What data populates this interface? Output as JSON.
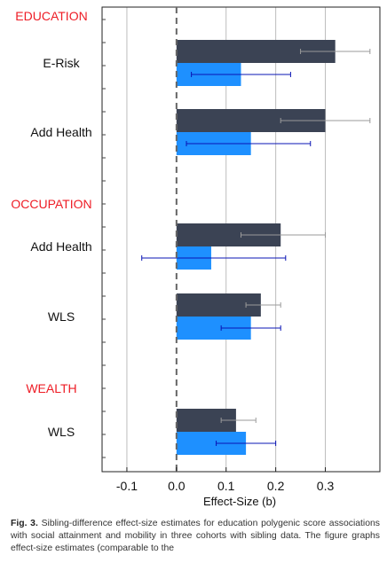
{
  "chart_data": {
    "type": "bar",
    "orientation": "horizontal",
    "xlabel": "Effect-Size (b)",
    "xlim": [
      -0.15,
      0.41
    ],
    "xticks": [
      -0.1,
      0,
      0.1,
      0.2,
      0.3
    ],
    "xtick_labels": [
      "-0.1",
      "0.0",
      "0.1",
      "0.2",
      "0.3"
    ],
    "grid": "vertical",
    "reference_line": 0,
    "series_colors": [
      "#3b4354",
      "#1e90ff"
    ],
    "errorbar_colors": [
      "#9a9a9a",
      "#0a14b4"
    ],
    "groups": [
      {
        "title": "EDUCATION",
        "rows": [
          {
            "label": "E-Risk",
            "values": [
              0.32,
              0.13
            ],
            "ci": [
              [
                0.25,
                0.39
              ],
              [
                0.03,
                0.23
              ]
            ]
          },
          {
            "label": "Add Health",
            "values": [
              0.3,
              0.15
            ],
            "ci": [
              [
                0.21,
                0.39
              ],
              [
                0.02,
                0.27
              ]
            ]
          }
        ]
      },
      {
        "title": "OCCUPATION",
        "rows": [
          {
            "label": "Add Health",
            "values": [
              0.21,
              0.07
            ],
            "ci": [
              [
                0.13,
                0.3
              ],
              [
                -0.07,
                0.22
              ]
            ]
          }
        ]
      },
      {
        "title": "",
        "rows": [
          {
            "label": "WLS",
            "values": [
              0.17,
              0.15
            ],
            "ci": [
              [
                0.14,
                0.21
              ],
              [
                0.09,
                0.21
              ]
            ]
          }
        ]
      },
      {
        "title": "WEALTH",
        "rows": [
          {
            "label": "WLS",
            "values": [
              0.12,
              0.14
            ],
            "ci": [
              [
                0.09,
                0.16
              ],
              [
                0.08,
                0.2
              ]
            ]
          }
        ]
      }
    ],
    "group_title_color": "#ee1c25"
  },
  "caption": {
    "lead": "Fig. 3.",
    "text": "Sibling-difference effect-size estimates for education polygenic score associations with social attainment and mobility in three cohorts with sibling data. The figure graphs effect-size estimates (comparable to the"
  }
}
